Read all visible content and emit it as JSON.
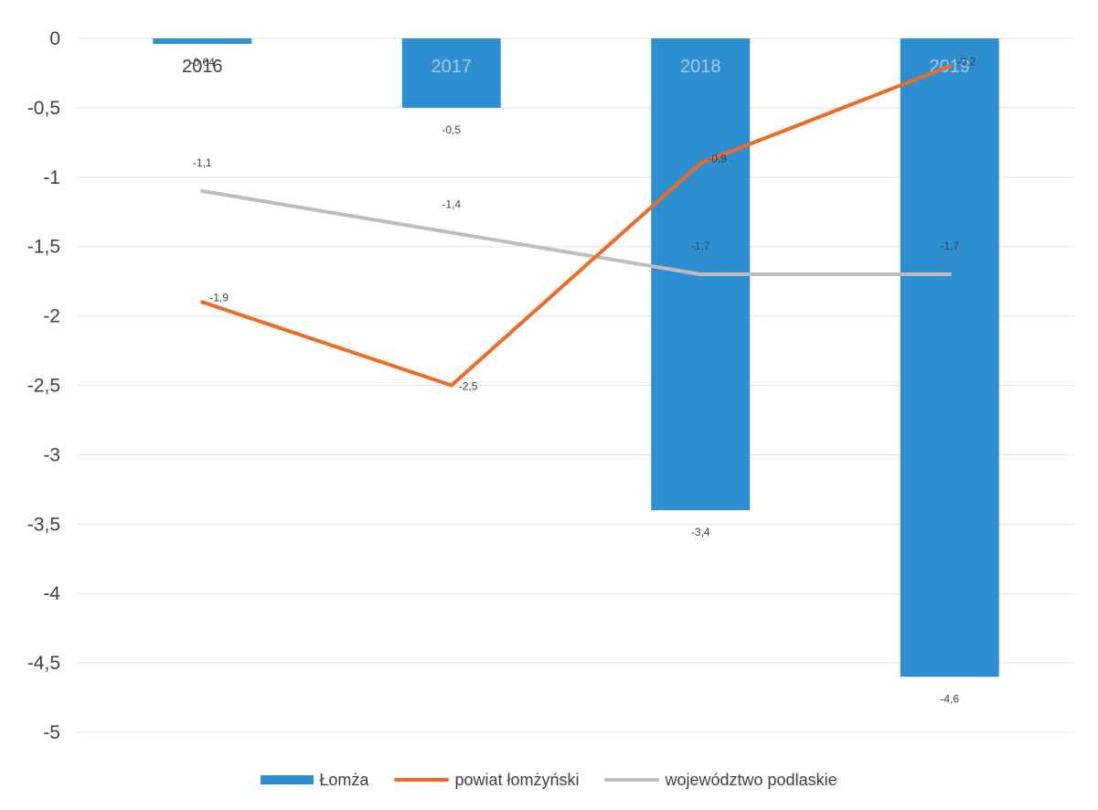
{
  "chart_data": {
    "type": "bar",
    "categories": [
      "2016",
      "2017",
      "2018",
      "2019"
    ],
    "ylim": [
      -5,
      0
    ],
    "yticks": [
      "0",
      "-0,5",
      "-1",
      "-1,5",
      "-2",
      "-2,5",
      "-3",
      "-3,5",
      "-4",
      "-4,5",
      "-5"
    ],
    "ytick_values": [
      0,
      -0.5,
      -1,
      -1.5,
      -2,
      -2.5,
      -3,
      -3.5,
      -4,
      -4.5,
      -5
    ],
    "grid": true,
    "legend_position": "bottom",
    "series": [
      {
        "name": "Łomża",
        "type": "bar",
        "color": "#2e8fd0",
        "values": [
          -0.04,
          -0.5,
          -3.4,
          -4.6
        ],
        "labels": [
          "-0,04",
          "-0,5",
          "-3,4",
          "-4,6"
        ]
      },
      {
        "name": "powiat łomżyński",
        "type": "line",
        "color": "#f06a26",
        "values": [
          -1.9,
          -2.5,
          -0.9,
          -0.2
        ],
        "labels": [
          "-1,9",
          "-2,5",
          "-0,9",
          "-0,2"
        ]
      },
      {
        "name": "województwo podlaskie",
        "type": "line",
        "color": "#bdbdbd",
        "values": [
          -1.1,
          -1.4,
          -1.7,
          -1.7
        ],
        "labels": [
          "-1,1",
          "-1,4",
          "-1,7",
          "-1,7"
        ]
      }
    ]
  }
}
